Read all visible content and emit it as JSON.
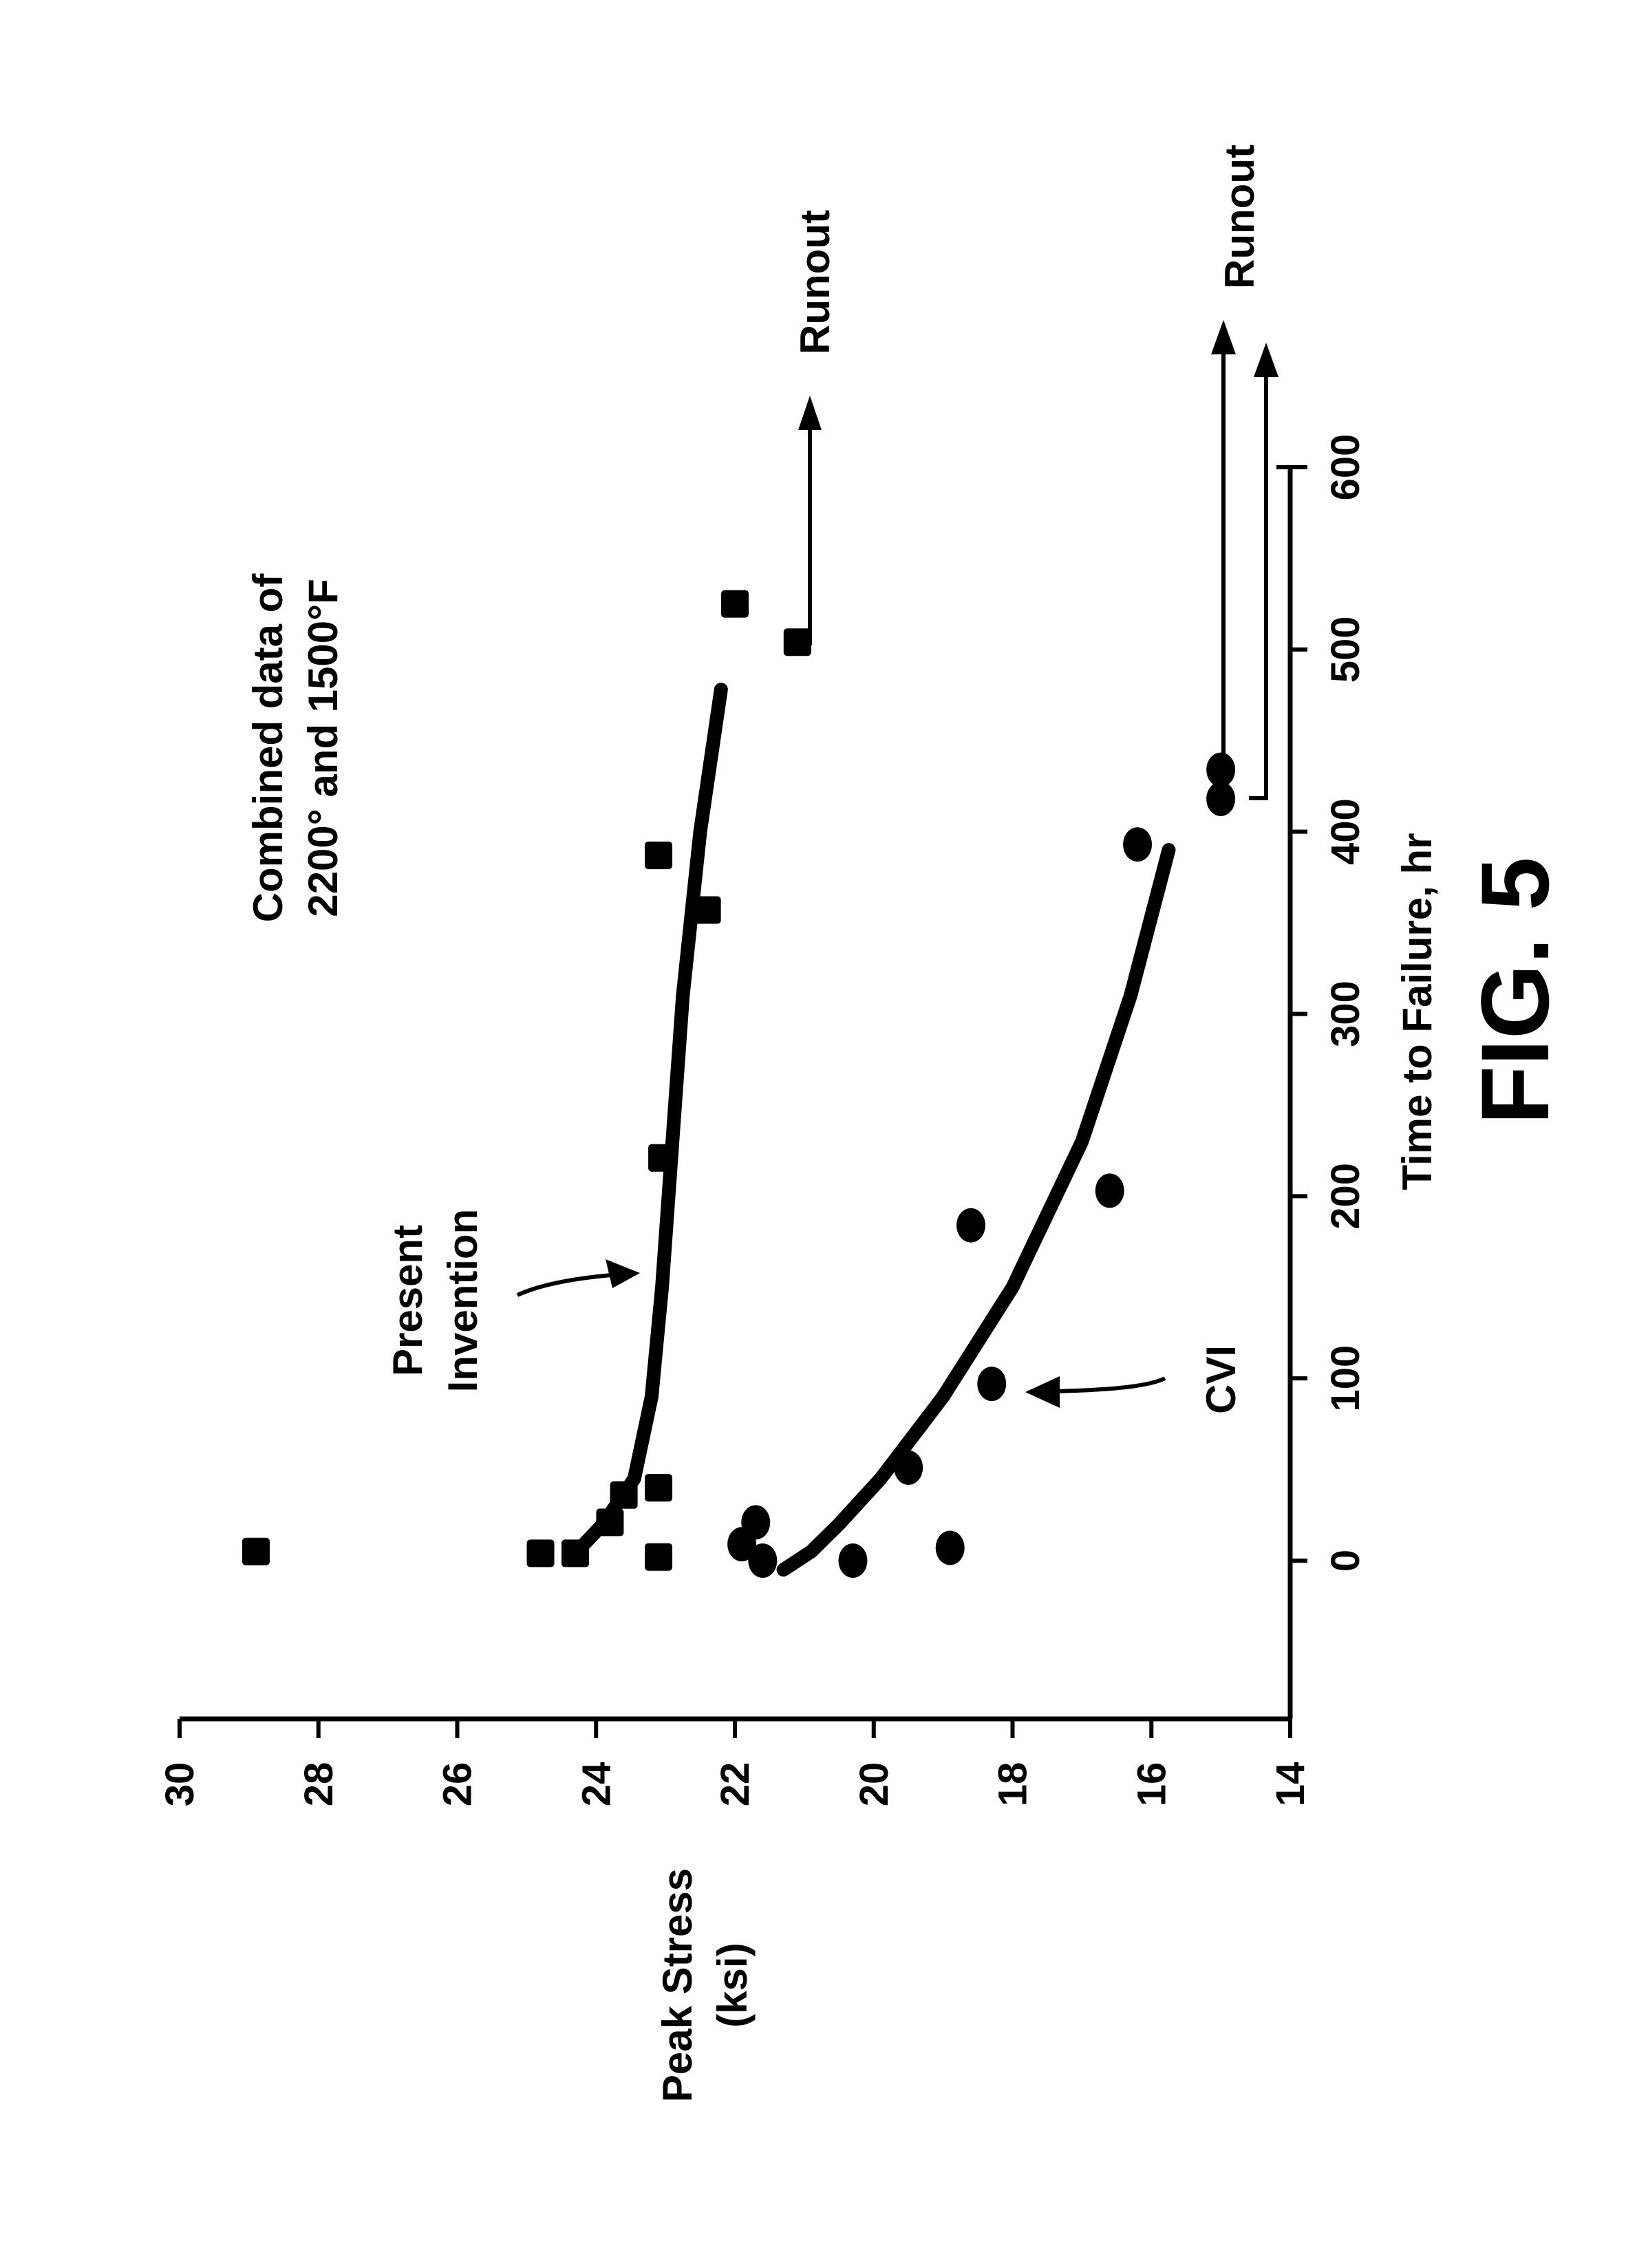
{
  "chart_data": {
    "type": "scatter",
    "orientation": "rotated 90 degrees counter-clockwise",
    "title": "FIG. 5",
    "annotation_title": [
      "Combined data of",
      "2200° and 1500°F"
    ],
    "xlabel": "Time to Failure, hr",
    "ylabel": [
      "Peak Stress",
      "(ksi)"
    ],
    "xlim": [
      -87,
      600
    ],
    "ylim": [
      14,
      30
    ],
    "xticks": [
      0,
      100,
      200,
      300,
      400,
      500,
      600
    ],
    "yticks": [
      14,
      16,
      18,
      20,
      22,
      24,
      26,
      28,
      30
    ],
    "grid": false,
    "series": [
      {
        "name": "Present Invention",
        "label": [
          "Present",
          "Invention"
        ],
        "marker": "square",
        "points": [
          {
            "time": 5,
            "stress": 28.9
          },
          {
            "time": 4,
            "stress": 24.8
          },
          {
            "time": 4,
            "stress": 24.3
          },
          {
            "time": 21,
            "stress": 23.8
          },
          {
            "time": 36,
            "stress": 23.6
          },
          {
            "time": 2,
            "stress": 23.1
          },
          {
            "time": 40,
            "stress": 23.1
          },
          {
            "time": 221,
            "stress": 23.05
          },
          {
            "time": 387,
            "stress": 23.1
          },
          {
            "time": 357,
            "stress": 22.4
          },
          {
            "time": 525,
            "stress": 22.0
          },
          {
            "time": 504,
            "stress": 21.1,
            "runout": true
          }
        ],
        "trend": [
          {
            "time": 4,
            "stress": 24.3
          },
          {
            "time": 20,
            "stress": 23.9
          },
          {
            "time": 45,
            "stress": 23.45
          },
          {
            "time": 90,
            "stress": 23.2
          },
          {
            "time": 150,
            "stress": 23.05
          },
          {
            "time": 230,
            "stress": 22.9
          },
          {
            "time": 310,
            "stress": 22.75
          },
          {
            "time": 400,
            "stress": 22.5
          },
          {
            "time": 478,
            "stress": 22.2
          }
        ]
      },
      {
        "name": "CVI",
        "label": [
          "CVI"
        ],
        "marker": "circle",
        "points": [
          {
            "time": 9,
            "stress": 21.9
          },
          {
            "time": 21,
            "stress": 21.7
          },
          {
            "time": 0,
            "stress": 21.6
          },
          {
            "time": 0,
            "stress": 20.3
          },
          {
            "time": 51,
            "stress": 19.5
          },
          {
            "time": 7,
            "stress": 18.9
          },
          {
            "time": 97,
            "stress": 18.3
          },
          {
            "time": 184,
            "stress": 18.6
          },
          {
            "time": 203,
            "stress": 16.6
          },
          {
            "time": 393,
            "stress": 16.2
          },
          {
            "time": 418,
            "stress": 15.0,
            "runout": true
          },
          {
            "time": 434,
            "stress": 15.0,
            "runout": true
          }
        ],
        "trend": [
          {
            "time": -5,
            "stress": 21.3
          },
          {
            "time": 5,
            "stress": 20.9
          },
          {
            "time": 20,
            "stress": 20.5
          },
          {
            "time": 45,
            "stress": 19.9
          },
          {
            "time": 90,
            "stress": 19.0
          },
          {
            "time": 150,
            "stress": 18.0
          },
          {
            "time": 230,
            "stress": 17.0
          },
          {
            "time": 310,
            "stress": 16.3
          },
          {
            "time": 390,
            "stress": 15.75
          }
        ]
      }
    ],
    "runout_label": "Runout"
  }
}
